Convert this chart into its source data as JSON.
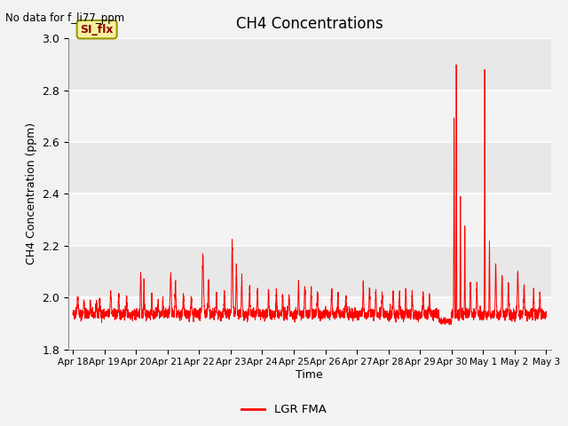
{
  "title": "CH4 Concentrations",
  "xlabel": "Time",
  "ylabel": "CH4 Concentration (ppm)",
  "top_left_text": "No data for f_li77_ppm",
  "legend_label": "LGR FMA",
  "legend_box_label": "SI_flx",
  "line_color": "#FF0000",
  "background_color": "#E8E8E8",
  "ylim": [
    1.8,
    3.0
  ],
  "yticks": [
    1.8,
    2.0,
    2.2,
    2.4,
    2.6,
    2.8,
    3.0
  ],
  "xtick_labels": [
    "Apr 18",
    "Apr 19",
    "Apr 20",
    "Apr 21",
    "Apr 22",
    "Apr 23",
    "Apr 24",
    "Apr 25",
    "Apr 26",
    "Apr 27",
    "Apr 28",
    "Apr 29",
    "Apr 30",
    "May 1",
    "May 2",
    "May 3"
  ],
  "figsize": [
    6.4,
    4.8
  ],
  "dpi": 100
}
